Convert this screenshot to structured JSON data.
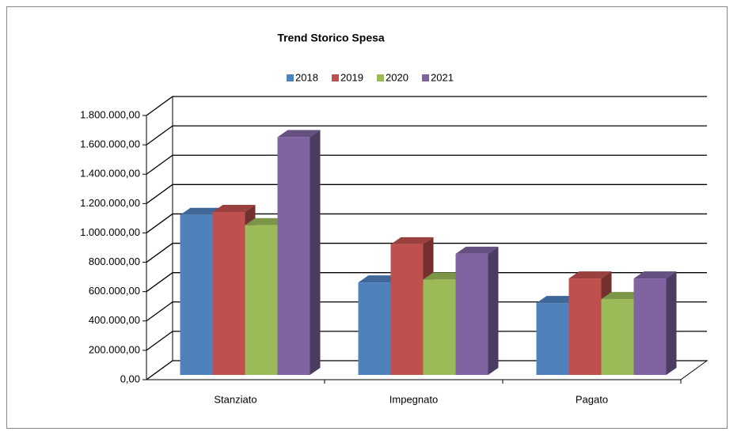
{
  "chart_data": {
    "type": "bar3d",
    "title": "Trend Storico Spesa",
    "categories": [
      "Stanziato",
      "Impegnato",
      "Pagato"
    ],
    "series": [
      {
        "name": "2018",
        "color": "#4f81bd",
        "values": [
          1090000,
          630000,
          490000
        ]
      },
      {
        "name": "2019",
        "color": "#c0504d",
        "values": [
          1110000,
          890000,
          657000
        ]
      },
      {
        "name": "2020",
        "color": "#9bbb59",
        "values": [
          1020000,
          650000,
          517000
        ]
      },
      {
        "name": "2021",
        "color": "#8064a2",
        "values": [
          1620000,
          825000,
          657000
        ]
      }
    ],
    "ylim": [
      0,
      1800000
    ],
    "yticks": [
      {
        "value": 0,
        "label": "0,00"
      },
      {
        "value": 200000,
        "label": "200.000,00"
      },
      {
        "value": 400000,
        "label": "400.000,00"
      },
      {
        "value": 600000,
        "label": "600.000,00"
      },
      {
        "value": 800000,
        "label": "800.000,00"
      },
      {
        "value": 1000000,
        "label": "1.000.000,00"
      },
      {
        "value": 1200000,
        "label": "1.200.000,00"
      },
      {
        "value": 1400000,
        "label": "1.400.000,00"
      },
      {
        "value": 1600000,
        "label": "1.600.000,00"
      },
      {
        "value": 1800000,
        "label": "1.800.000,00"
      }
    ],
    "grid": true,
    "legend": "top"
  }
}
